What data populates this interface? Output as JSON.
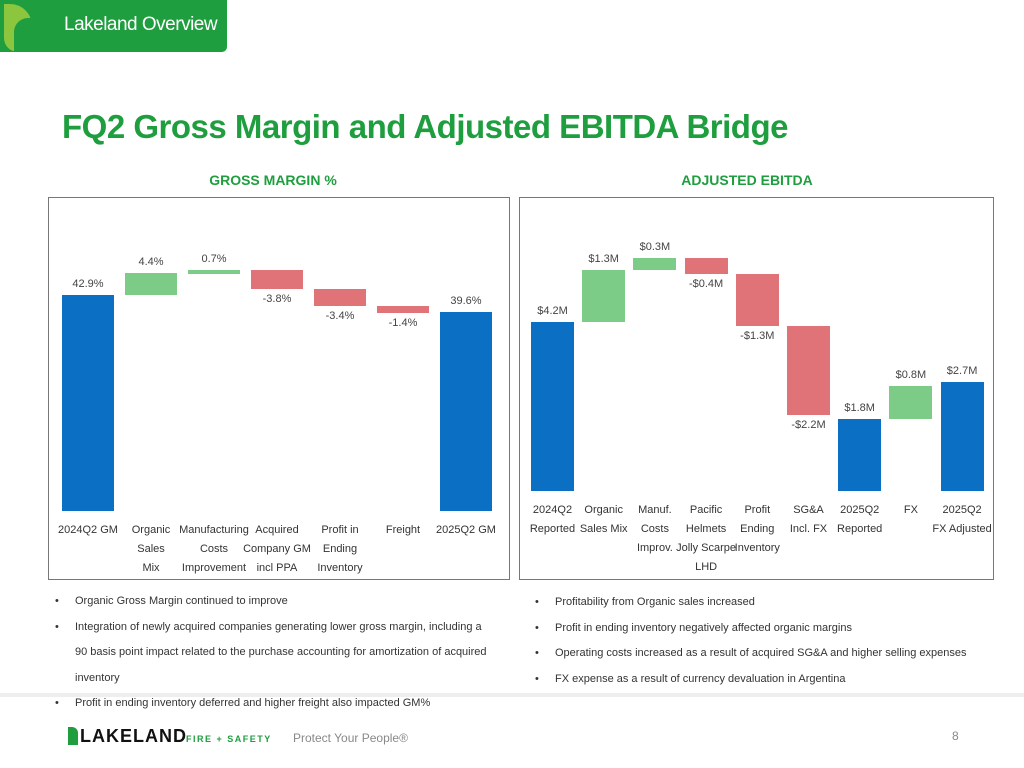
{
  "header": {
    "section": "Lakeland Overview"
  },
  "title": "FQ2 Gross Margin and Adjusted EBITDA Bridge",
  "colors": {
    "total": "#0b6fc4",
    "increase": "#7ccb86",
    "decrease": "#e07377",
    "brand": "#1e9e3e"
  },
  "chart_data": [
    {
      "type": "waterfall",
      "title": "GROSS MARGIN %",
      "unit": "%",
      "categories": [
        "2024Q2 GM",
        "Organic\nSales\nMix",
        "Manufacturing\nCosts\nImprovement",
        "Acquired\nCompany GM\nincl PPA",
        "Profit in\nEnding\nInventory",
        "Freight",
        "2025Q2 GM"
      ],
      "values": [
        42.9,
        4.4,
        0.7,
        -3.8,
        -3.4,
        -1.4,
        39.6
      ],
      "kinds": [
        "total",
        "delta",
        "delta",
        "delta",
        "delta",
        "delta",
        "total"
      ],
      "labels": [
        "42.9%",
        "4.4%",
        "0.7%",
        "-3.8%",
        "-3.4%",
        "-1.4%",
        "39.6%"
      ]
    },
    {
      "type": "waterfall",
      "title": "ADJUSTED EBITDA",
      "unit": "$M",
      "categories": [
        "2024Q2\nReported",
        "Organic\nSales Mix",
        "Manuf.\nCosts\nImprov.",
        "Pacific\nHelmets\nJolly Scarpe\nLHD",
        "Profit\nEnding\nInventory",
        "SG&A\nIncl. FX",
        "2025Q2\nReported",
        "FX",
        "2025Q2\nFX Adjusted"
      ],
      "values": [
        4.2,
        1.3,
        0.3,
        -0.4,
        -1.3,
        -2.2,
        1.8,
        0.8,
        2.7
      ],
      "kinds": [
        "total",
        "delta",
        "delta",
        "delta",
        "delta",
        "delta",
        "total",
        "delta",
        "total"
      ],
      "labels": [
        "$4.2M",
        "$1.3M",
        "$0.3M",
        "-$0.4M",
        "-$1.3M",
        "-$2.2M",
        "$1.8M",
        "$0.8M",
        "$2.7M"
      ]
    }
  ],
  "left_bullets": [
    "Organic Gross Margin continued to improve",
    "Integration of newly acquired companies generating lower gross margin, including a 90 basis point impact related to the purchase accounting for amortization of acquired inventory",
    "Profit in ending inventory deferred and higher freight also impacted GM%"
  ],
  "right_bullets": [
    "Profitability from Organic sales increased",
    "Profit in ending inventory negatively affected organic margins",
    "Operating costs increased as a result of acquired SG&A and higher selling expenses",
    "FX expense as a result of currency devaluation in Argentina"
  ],
  "footer": {
    "logo": "LAKELAND",
    "logo_sub": "FIRE + SAFETY",
    "tagline": "Protect Your People®",
    "page": "8"
  }
}
